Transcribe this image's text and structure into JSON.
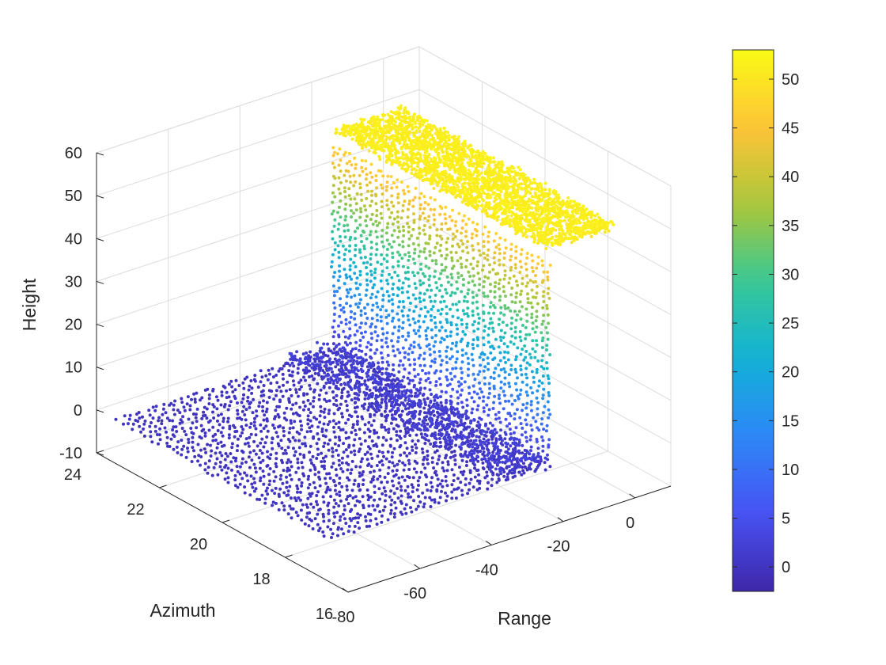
{
  "chart_data": {
    "type": "scatter3d",
    "title": "",
    "xlabel": "Range",
    "ylabel": "Azimuth",
    "zlabel": "Height",
    "xlim": [
      -80,
      10
    ],
    "ylim": [
      16,
      24
    ],
    "zlim": [
      -10,
      60
    ],
    "x_ticks": [
      "-80",
      "-60",
      "-40",
      "-20",
      "0"
    ],
    "y_ticks": [
      "16",
      "18",
      "20",
      "22",
      "24"
    ],
    "z_ticks": [
      "-10",
      "0",
      "10",
      "20",
      "30",
      "40",
      "50",
      "60"
    ],
    "grid": true,
    "colorbar": {
      "range": [
        -2.5,
        53
      ],
      "ticks": [
        "0",
        "5",
        "10",
        "15",
        "20",
        "25",
        "30",
        "35",
        "40",
        "45",
        "50"
      ],
      "colormap": "parula"
    },
    "structure": {
      "ground_plane": {
        "x_range": [
          -80,
          -19
        ],
        "y_range": [
          16.6,
          23.4
        ],
        "z": 0
      },
      "facade_wall": {
        "x": -19,
        "y_range": [
          16.6,
          23.4
        ],
        "z_range": [
          0,
          48
        ]
      },
      "roof": {
        "x_range": [
          -19,
          0
        ],
        "y_range": [
          16.6,
          23.4
        ],
        "z": 51
      }
    }
  }
}
